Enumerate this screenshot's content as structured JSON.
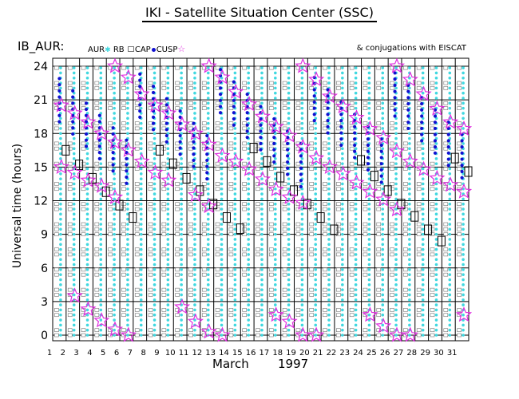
{
  "title": "IKI - Satellite Situation Center (SSC)",
  "series_label": "IB_AUR:",
  "legend": {
    "aur": "AUR",
    "rb": "RB",
    "cap": "CAP",
    "cusp": "CUSP",
    "note": "& conjugations with EISCAT"
  },
  "colors": {
    "aur": "#40d8e0",
    "cusp": "#1010d0",
    "cap": "#777777",
    "star": "#e030e0",
    "grid": "#000000"
  },
  "xlabel_month": "March",
  "xlabel_year": "1997",
  "ylabel": "Universal time (hours)",
  "chart_data": {
    "type": "scatter",
    "title": "IKI - Satellite Situation Center (SSC)",
    "xlabel": "March 1997",
    "ylabel": "Universal time (hours)",
    "x_ticks": [
      1,
      2,
      3,
      4,
      5,
      6,
      7,
      8,
      9,
      10,
      11,
      12,
      13,
      14,
      15,
      16,
      17,
      18,
      19,
      20,
      21,
      22,
      23,
      24,
      25,
      26,
      27,
      28,
      29,
      30,
      31
    ],
    "y_ticks": [
      0,
      3,
      6,
      9,
      12,
      15,
      18,
      21,
      24
    ],
    "xlim": [
      1,
      32
    ],
    "ylim": [
      0,
      24
    ],
    "series": [
      {
        "name": "AUR",
        "marker": "cyan dots",
        "values": "continuous UT coverage per day"
      },
      {
        "name": "CAP",
        "marker": "gray squares"
      },
      {
        "name": "CUSP",
        "marker": "blue dots"
      },
      {
        "name": "EISCAT conjugations",
        "marker": "magenta stars",
        "points": [
          {
            "day": 2,
            "ut": 20.5
          },
          {
            "day": 2,
            "ut": 15.0
          },
          {
            "day": 3,
            "ut": 19.8
          },
          {
            "day": 3,
            "ut": 14.5
          },
          {
            "day": 3,
            "ut": 3.5
          },
          {
            "day": 4,
            "ut": 19.0
          },
          {
            "day": 4,
            "ut": 13.8
          },
          {
            "day": 4,
            "ut": 2.3
          },
          {
            "day": 5,
            "ut": 18.0
          },
          {
            "day": 5,
            "ut": 13.3
          },
          {
            "day": 5,
            "ut": 1.3
          },
          {
            "day": 6,
            "ut": 24.0
          },
          {
            "day": 6,
            "ut": 17.2
          },
          {
            "day": 6,
            "ut": 12.3
          },
          {
            "day": 6,
            "ut": 0.5
          },
          {
            "day": 7,
            "ut": 23.0
          },
          {
            "day": 7,
            "ut": 16.5
          },
          {
            "day": 7,
            "ut": 0.0
          },
          {
            "day": 8,
            "ut": 21.5
          },
          {
            "day": 8,
            "ut": 15.5
          },
          {
            "day": 9,
            "ut": 20.5
          },
          {
            "day": 9,
            "ut": 14.5
          },
          {
            "day": 10,
            "ut": 19.8
          },
          {
            "day": 10,
            "ut": 13.8
          },
          {
            "day": 11,
            "ut": 18.8
          },
          {
            "day": 11,
            "ut": 2.5
          },
          {
            "day": 12,
            "ut": 18.0
          },
          {
            "day": 12,
            "ut": 12.5
          },
          {
            "day": 12,
            "ut": 1.2
          },
          {
            "day": 13,
            "ut": 24.0
          },
          {
            "day": 13,
            "ut": 17.0
          },
          {
            "day": 13,
            "ut": 11.5
          },
          {
            "day": 13,
            "ut": 0.3
          },
          {
            "day": 14,
            "ut": 23.0
          },
          {
            "day": 14,
            "ut": 16.0
          },
          {
            "day": 14,
            "ut": 0.0
          },
          {
            "day": 15,
            "ut": 21.7
          },
          {
            "day": 15,
            "ut": 15.5
          },
          {
            "day": 16,
            "ut": 20.6
          },
          {
            "day": 16,
            "ut": 14.8
          },
          {
            "day": 17,
            "ut": 19.5
          },
          {
            "day": 17,
            "ut": 13.9
          },
          {
            "day": 18,
            "ut": 18.6
          },
          {
            "day": 18,
            "ut": 13.0
          },
          {
            "day": 18,
            "ut": 1.8
          },
          {
            "day": 19,
            "ut": 17.8
          },
          {
            "day": 19,
            "ut": 12.3
          },
          {
            "day": 19,
            "ut": 1.2
          },
          {
            "day": 20,
            "ut": 24.0
          },
          {
            "day": 20,
            "ut": 16.8
          },
          {
            "day": 20,
            "ut": 11.8
          },
          {
            "day": 20,
            "ut": 0.0
          },
          {
            "day": 21,
            "ut": 22.8
          },
          {
            "day": 21,
            "ut": 15.8
          },
          {
            "day": 21,
            "ut": 0.0
          },
          {
            "day": 22,
            "ut": 21.3
          },
          {
            "day": 22,
            "ut": 15.0
          },
          {
            "day": 23,
            "ut": 20.4
          },
          {
            "day": 23,
            "ut": 14.4
          },
          {
            "day": 24,
            "ut": 19.4
          },
          {
            "day": 24,
            "ut": 13.6
          },
          {
            "day": 25,
            "ut": 18.4
          },
          {
            "day": 25,
            "ut": 12.8
          },
          {
            "day": 25,
            "ut": 1.8
          },
          {
            "day": 26,
            "ut": 17.6
          },
          {
            "day": 26,
            "ut": 12.1
          },
          {
            "day": 26,
            "ut": 0.8
          },
          {
            "day": 27,
            "ut": 24.0
          },
          {
            "day": 27,
            "ut": 16.4
          },
          {
            "day": 27,
            "ut": 11.2
          },
          {
            "day": 27,
            "ut": 0.0
          },
          {
            "day": 28,
            "ut": 22.8
          },
          {
            "day": 28,
            "ut": 15.5
          },
          {
            "day": 28,
            "ut": 0.0
          },
          {
            "day": 29,
            "ut": 21.5
          },
          {
            "day": 29,
            "ut": 14.8
          },
          {
            "day": 30,
            "ut": 20.2
          },
          {
            "day": 30,
            "ut": 14.0
          },
          {
            "day": 31,
            "ut": 19.0
          },
          {
            "day": 31,
            "ut": 13.4
          },
          {
            "day": 32,
            "ut": 18.4
          },
          {
            "day": 32,
            "ut": 12.8
          },
          {
            "day": 32,
            "ut": 1.8
          }
        ]
      },
      {
        "name": "RB crossings",
        "marker": "black rectangles",
        "points": [
          {
            "day": 2,
            "ut": 16.5
          },
          {
            "day": 3,
            "ut": 15.2
          },
          {
            "day": 4,
            "ut": 14.0
          },
          {
            "day": 5,
            "ut": 12.8
          },
          {
            "day": 6,
            "ut": 11.6
          },
          {
            "day": 7,
            "ut": 10.5
          },
          {
            "day": 9,
            "ut": 16.5
          },
          {
            "day": 10,
            "ut": 15.3
          },
          {
            "day": 11,
            "ut": 14.0
          },
          {
            "day": 12,
            "ut": 12.9
          },
          {
            "day": 13,
            "ut": 11.7
          },
          {
            "day": 14,
            "ut": 10.5
          },
          {
            "day": 15,
            "ut": 9.5
          },
          {
            "day": 16,
            "ut": 16.7
          },
          {
            "day": 17,
            "ut": 15.5
          },
          {
            "day": 18,
            "ut": 14.1
          },
          {
            "day": 19,
            "ut": 12.9
          },
          {
            "day": 20,
            "ut": 11.7
          },
          {
            "day": 21,
            "ut": 10.5
          },
          {
            "day": 22,
            "ut": 9.4
          },
          {
            "day": 24,
            "ut": 15.6
          },
          {
            "day": 25,
            "ut": 14.2
          },
          {
            "day": 26,
            "ut": 12.9
          },
          {
            "day": 27,
            "ut": 11.7
          },
          {
            "day": 28,
            "ut": 10.6
          },
          {
            "day": 29,
            "ut": 9.4
          },
          {
            "day": 30,
            "ut": 8.4
          },
          {
            "day": 31,
            "ut": 15.8
          },
          {
            "day": 32,
            "ut": 14.6
          }
        ]
      }
    ]
  }
}
